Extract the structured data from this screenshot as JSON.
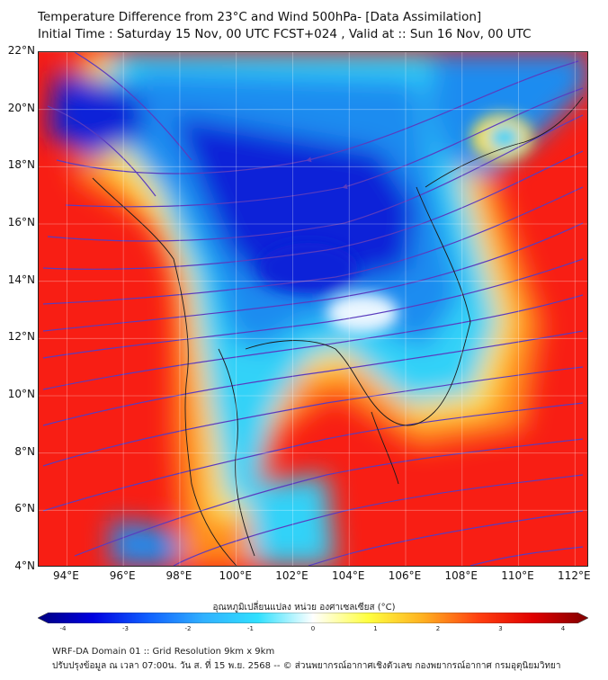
{
  "header": {
    "title_line1": "Temperature Difference from 23°C and Wind 500hPa- [Data Assimilation]",
    "title_line2": "Initial Time : Saturday 15 Nov, 00 UTC FCST+024 , Valid at ::  Sun 16 Nov, 00 UTC"
  },
  "map": {
    "lat_ticks": [
      "22°N",
      "20°N",
      "18°N",
      "16°N",
      "14°N",
      "12°N",
      "10°N",
      "8°N",
      "6°N",
      "4°N"
    ],
    "lon_ticks": [
      "94°E",
      "96°E",
      "98°E",
      "100°E",
      "102°E",
      "104°E",
      "106°E",
      "108°E",
      "110°E",
      "112°E"
    ],
    "extent": {
      "lon_min": 93.0,
      "lon_max": 112.5,
      "lat_min": 4.0,
      "lat_max": 22.0
    },
    "colors": {
      "cold": "#0a20d8",
      "cool": "#1e8cf0",
      "cyan": "#32d2f8",
      "pale": "#eaf6ff",
      "warm": "#ffe24a",
      "orange": "#ff8c1e",
      "hot": "#f81e14",
      "streamline": "#5a3cbe"
    }
  },
  "colorbar": {
    "label": "อุณหภูมิเปลี่ยนแปลง หน่วย องศาเซลเซียส (°C)",
    "ticks": [
      "-4",
      "-3",
      "-2",
      "-1",
      "0",
      "1",
      "2",
      "3",
      "4"
    ],
    "stops": [
      "#000080",
      "#0000e0",
      "#1060ff",
      "#30b0ff",
      "#30e0ff",
      "#ffffff",
      "#ffff40",
      "#ffb020",
      "#ff4010",
      "#e00000",
      "#800000"
    ]
  },
  "footer": {
    "line1": "WRF-DA Domain 01 :: Grid Resolution 9km x 9km",
    "line2": "ปรับปรุงข้อมูล ณ เวลา 07:00น. วัน ส. ที่ 15 พ.ย. 2568 -- © ส่วนพยากรณ์อากาศเชิงตัวเลข กองพยากรณ์อากาศ กรมอุตุนิยมวิทยา"
  }
}
